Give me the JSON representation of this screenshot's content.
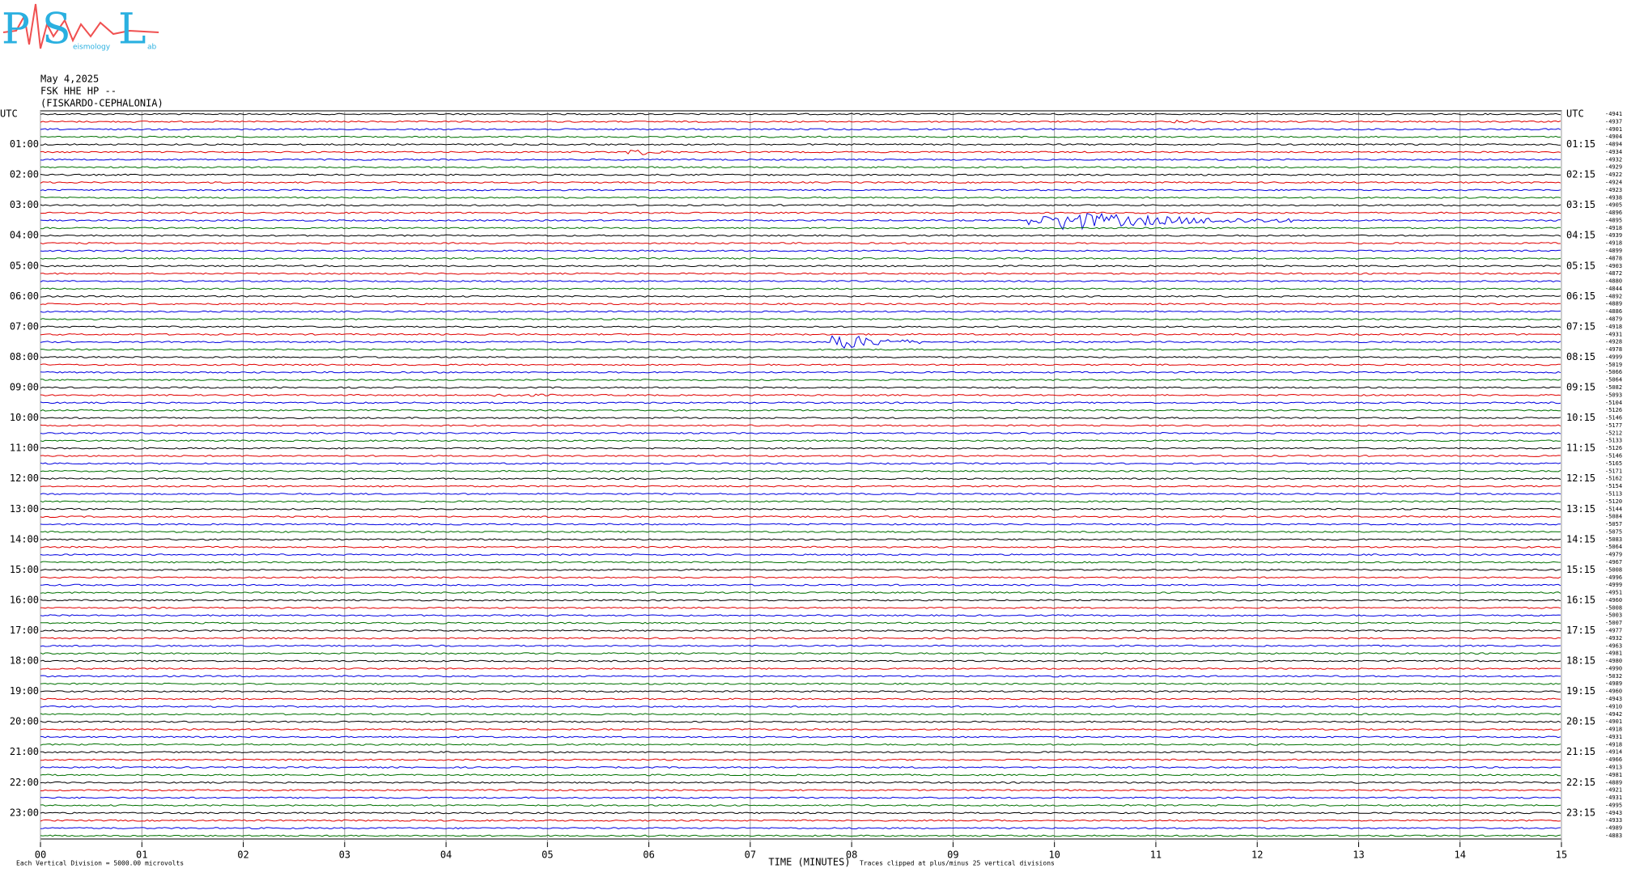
{
  "logo": {
    "letters": [
      "P",
      "S",
      "L"
    ],
    "words": [
      "eismology",
      "ab"
    ]
  },
  "header": {
    "date": "May 4,2025",
    "channel": "FSK HHE HP --",
    "station": "(FISKARDO-CEPHALONIA)"
  },
  "chart_data": {
    "type": "helicorder",
    "xlabel": "TIME (MINUTES)",
    "xlim": [
      0,
      15
    ],
    "xticks": [
      {
        "value": 0,
        "label": "00"
      },
      {
        "value": 1,
        "label": "01"
      },
      {
        "value": 2,
        "label": "02"
      },
      {
        "value": 3,
        "label": "03"
      },
      {
        "value": 4,
        "label": "04"
      },
      {
        "value": 5,
        "label": "05"
      },
      {
        "value": 6,
        "label": "06"
      },
      {
        "value": 7,
        "label": "07"
      },
      {
        "value": 8,
        "label": "08"
      },
      {
        "value": 9,
        "label": "09"
      },
      {
        "value": 10,
        "label": "10"
      },
      {
        "value": 11,
        "label": "11"
      },
      {
        "value": 12,
        "label": "12"
      },
      {
        "value": 13,
        "label": "13"
      },
      {
        "value": 14,
        "label": "14"
      },
      {
        "value": 15,
        "label": "15"
      }
    ],
    "left_labels": [
      "UTC",
      "01:00",
      "02:00",
      "03:00",
      "04:00",
      "05:00",
      "06:00",
      "07:00",
      "08:00",
      "09:00",
      "10:00",
      "11:00",
      "12:00",
      "13:00",
      "14:00",
      "15:00",
      "16:00",
      "17:00",
      "18:00",
      "19:00",
      "20:00",
      "21:00",
      "22:00",
      "23:00"
    ],
    "right_labels": [
      "UTC",
      "01:15",
      "02:15",
      "03:15",
      "04:15",
      "05:15",
      "06:15",
      "07:15",
      "08:15",
      "09:15",
      "10:15",
      "11:15",
      "12:15",
      "13:15",
      "14:15",
      "15:15",
      "16:15",
      "17:15",
      "18:15",
      "19:15",
      "20:15",
      "21:15",
      "22:15",
      "23:15"
    ],
    "trace_colors": [
      "#000000",
      "#e00000",
      "#0000e0",
      "#007000"
    ],
    "offsets": [
      -4941,
      -4937,
      -4901,
      -4904,
      -4894,
      -4934,
      -4932,
      -4929,
      -4922,
      -4924,
      -4923,
      -4938,
      -4905,
      -4896,
      -4895,
      -4918,
      -4939,
      -4918,
      -4899,
      -4878,
      -4903,
      -4872,
      -4880,
      -4844,
      -4892,
      -4889,
      -4886,
      -4879,
      -4918,
      -4931,
      -4928,
      -4978,
      -4999,
      -5019,
      -5066,
      -5064,
      -5082,
      -5093,
      -5104,
      -5126,
      -5146,
      -5177,
      -5212,
      -5133,
      -5126,
      -5146,
      -5165,
      -5171,
      -5162,
      -5154,
      -5113,
      -5120,
      -5144,
      -5084,
      -5057,
      -5075,
      -5083,
      -5064,
      -4979,
      -4967,
      -5008,
      -4996,
      -4999,
      -4951,
      -4960,
      -5008,
      -5003,
      -5007,
      -4977,
      -4932,
      -4963,
      -4981,
      -4980,
      -4990,
      -5032,
      -4989,
      -4960,
      -4943,
      -4910,
      -4942,
      -4901,
      -4918,
      -4931,
      -4918,
      -4914,
      -4966,
      -4913,
      -4981,
      -4889,
      -4921,
      -4931,
      -4995,
      -4943,
      -4933,
      -4989,
      -4883
    ],
    "footnote_left": "Each Vertical Division = 5000.00 microvolts",
    "footnote_right": "Traces clipped at plus/minus 25 vertical divisions"
  }
}
